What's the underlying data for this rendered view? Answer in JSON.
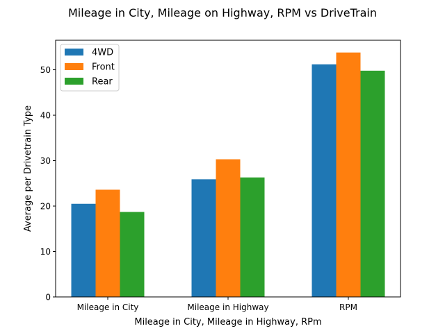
{
  "chart_data": {
    "type": "bar",
    "title": "Mileage in City, Mileage on Highway, RPM vs DriveTrain",
    "xlabel": "Mileage in City, Mileage in Highway, RPm",
    "ylabel": "Average per Drivetrain Type",
    "categories": [
      "Mileage in City",
      "Mileage in Highway",
      "RPM"
    ],
    "series": [
      {
        "name": "4WD",
        "color": "#1f77b4",
        "values": [
          20.5,
          25.9,
          51.2
        ]
      },
      {
        "name": "Front",
        "color": "#ff7f0e",
        "values": [
          23.6,
          30.3,
          53.8
        ]
      },
      {
        "name": "Rear",
        "color": "#2ca02c",
        "values": [
          18.7,
          26.3,
          49.8
        ]
      }
    ],
    "ylim": [
      0,
      56.5
    ],
    "yticks": [
      0,
      10,
      20,
      30,
      40,
      50
    ],
    "legend": "top-left",
    "grid": false
  }
}
